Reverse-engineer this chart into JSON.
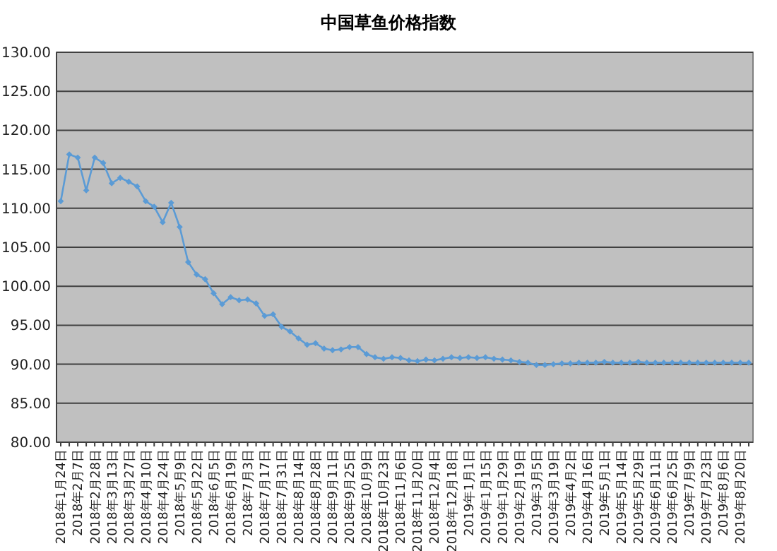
{
  "chart_data": {
    "type": "line",
    "title": "中国草鱼价格指数",
    "categories": [
      "2018年1月24日",
      null,
      "2018年2月7日",
      null,
      "2018年2月28日",
      null,
      "2018年3月13日",
      null,
      "2018年3月27日",
      null,
      "2018年4月10日",
      null,
      "2018年4月24日",
      null,
      "2018年5月9日",
      null,
      "2018年5月22日",
      null,
      "2018年6月5日",
      null,
      "2018年6月19日",
      null,
      "2018年7月3日",
      null,
      "2018年7月17日",
      null,
      "2018年7月31日",
      null,
      "2018年8月14日",
      null,
      "2018年8月28日",
      null,
      "2018年9月11日",
      null,
      "2018年9月25日",
      null,
      "2018年10月9日",
      null,
      "2018年10月23日",
      null,
      "2018年11月6日",
      null,
      "2018年11月20日",
      null,
      "2018年12月4日",
      null,
      "2018年12月18日",
      null,
      "2019年1月1日",
      null,
      "2019年1月15日",
      null,
      "2019年1月29日",
      null,
      "2019年2月19日",
      null,
      "2019年3月5日",
      null,
      "2019年3月19日",
      null,
      "2019年4月2日",
      null,
      "2019年4月16日",
      null,
      "2019年5月1日",
      null,
      "2019年5月14日",
      null,
      "2019年5月29日",
      null,
      "2019年6月11日",
      null,
      "2019年6月25日",
      null,
      "2019年7月9日",
      null,
      "2019年7月23日",
      null,
      "2019年8月6日",
      null,
      "2019年8月20日",
      null
    ],
    "series": [
      {
        "color": "#5b9bd5",
        "values": [
          110.9,
          116.9,
          116.5,
          112.3,
          116.5,
          115.8,
          113.2,
          113.9,
          113.4,
          112.8,
          110.9,
          110.2,
          108.2,
          110.7,
          107.6,
          103.1,
          101.5,
          100.9,
          99.1,
          97.7,
          98.6,
          98.2,
          98.3,
          97.8,
          96.2,
          96.4,
          94.8,
          94.2,
          93.3,
          92.5,
          92.7,
          92.0,
          91.8,
          91.9,
          92.2,
          92.2,
          91.3,
          90.9,
          90.7,
          90.9,
          90.8,
          90.5,
          90.4,
          90.6,
          90.5,
          90.7,
          90.9,
          90.8,
          90.9,
          90.8,
          90.9,
          90.7,
          90.6,
          90.5,
          90.3,
          90.2,
          89.9,
          89.9,
          90.0,
          90.1,
          90.1,
          90.2,
          90.2,
          90.2,
          90.3,
          90.2,
          90.2,
          90.2,
          90.3,
          90.2,
          90.2,
          90.2,
          90.2,
          90.2,
          90.2,
          90.2,
          90.2,
          90.2,
          90.2,
          90.2,
          90.2,
          90.2
        ]
      }
    ],
    "ylim": [
      80,
      130
    ],
    "yticks": [
      {
        "value": 80,
        "label": "80.00"
      },
      {
        "value": 85,
        "label": "85.00"
      },
      {
        "value": 90,
        "label": "90.00"
      },
      {
        "value": 95,
        "label": "95.00"
      },
      {
        "value": 100,
        "label": "100.00"
      },
      {
        "value": 105,
        "label": "105.00"
      },
      {
        "value": 110,
        "label": "110.00"
      },
      {
        "value": 115,
        "label": "115.00"
      },
      {
        "value": 120,
        "label": "120.00"
      },
      {
        "value": 125,
        "label": "125.00"
      },
      {
        "value": 130,
        "label": "130.00"
      }
    ],
    "grid": "y",
    "marker": "diamond",
    "line_style": "solid"
  }
}
